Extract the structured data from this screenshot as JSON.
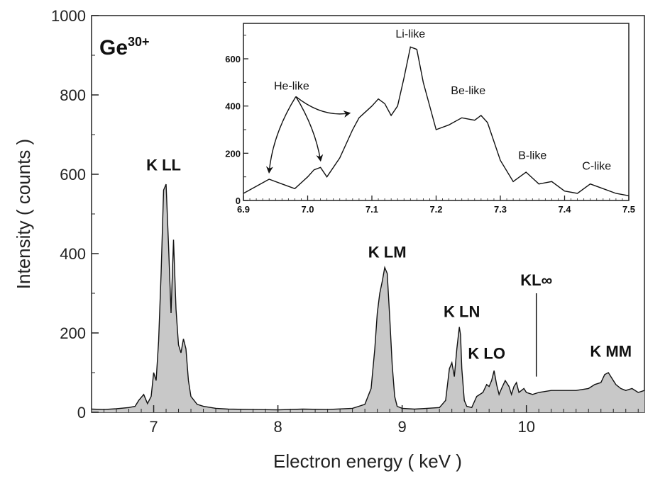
{
  "chart_data": [
    {
      "type": "area",
      "xlabel": "Electron energy  ( keV )",
      "ylabel": "Intensity  ( counts )",
      "xlim": [
        6.5,
        10.95
      ],
      "ylim": [
        0,
        1000
      ],
      "xticks": [
        7,
        8,
        9,
        10
      ],
      "yticks": [
        0,
        200,
        400,
        600,
        800,
        1000
      ],
      "ion": {
        "symbol": "Ge",
        "charge": "30+"
      },
      "x": [
        6.5,
        6.6,
        6.7,
        6.8,
        6.85,
        6.88,
        6.92,
        6.95,
        6.98,
        7.0,
        7.02,
        7.04,
        7.06,
        7.08,
        7.1,
        7.12,
        7.14,
        7.16,
        7.18,
        7.2,
        7.22,
        7.24,
        7.26,
        7.28,
        7.3,
        7.35,
        7.4,
        7.5,
        7.6,
        7.8,
        8.0,
        8.2,
        8.4,
        8.6,
        8.7,
        8.75,
        8.78,
        8.8,
        8.82,
        8.84,
        8.86,
        8.88,
        8.9,
        8.92,
        8.94,
        8.96,
        9.0,
        9.1,
        9.2,
        9.3,
        9.35,
        9.38,
        9.4,
        9.42,
        9.44,
        9.46,
        9.47,
        9.48,
        9.5,
        9.52,
        9.56,
        9.6,
        9.65,
        9.68,
        9.7,
        9.72,
        9.74,
        9.76,
        9.78,
        9.8,
        9.83,
        9.86,
        9.88,
        9.9,
        9.92,
        9.94,
        9.96,
        9.98,
        10.0,
        10.05,
        10.1,
        10.2,
        10.3,
        10.4,
        10.5,
        10.55,
        10.6,
        10.63,
        10.66,
        10.68,
        10.72,
        10.76,
        10.8,
        10.85,
        10.9,
        10.95
      ],
      "y": [
        8,
        7,
        9,
        12,
        15,
        30,
        45,
        22,
        40,
        100,
        80,
        180,
        350,
        560,
        575,
        420,
        250,
        435,
        260,
        170,
        150,
        185,
        160,
        80,
        40,
        20,
        15,
        10,
        8,
        7,
        6,
        8,
        7,
        10,
        20,
        60,
        160,
        250,
        300,
        330,
        365,
        350,
        240,
        120,
        40,
        15,
        10,
        8,
        10,
        12,
        30,
        110,
        125,
        90,
        160,
        215,
        195,
        110,
        30,
        15,
        12,
        40,
        50,
        70,
        65,
        80,
        105,
        70,
        45,
        60,
        80,
        65,
        45,
        65,
        75,
        50,
        55,
        60,
        50,
        45,
        50,
        55,
        55,
        55,
        60,
        70,
        75,
        95,
        100,
        90,
        70,
        60,
        55,
        60,
        50,
        55
      ],
      "annotations": [
        {
          "text": "K LL",
          "x": 7.08,
          "y": 610
        },
        {
          "text": "K LM",
          "x": 8.88,
          "y": 390
        },
        {
          "text": "K LN",
          "x": 9.48,
          "y": 240
        },
        {
          "text": "K LO",
          "x": 9.68,
          "y": 135
        },
        {
          "text": "KL∞",
          "x": 10.08,
          "y": 320
        },
        {
          "text": "K MM",
          "x": 10.68,
          "y": 140
        }
      ],
      "kl_inf_marker": {
        "x": 10.08,
        "y_from": 90,
        "y_to": 300
      },
      "grid": false
    },
    {
      "type": "line",
      "xlim": [
        6.9,
        7.5
      ],
      "ylim": [
        0,
        750
      ],
      "xticks": [
        6.9,
        7.0,
        7.1,
        7.2,
        7.3,
        7.4,
        7.5
      ],
      "yticks": [
        0,
        200,
        400,
        600
      ],
      "x": [
        6.9,
        6.92,
        6.94,
        6.96,
        6.98,
        7.0,
        7.01,
        7.02,
        7.03,
        7.05,
        7.07,
        7.08,
        7.1,
        7.11,
        7.12,
        7.13,
        7.14,
        7.15,
        7.16,
        7.17,
        7.18,
        7.2,
        7.22,
        7.24,
        7.26,
        7.27,
        7.28,
        7.3,
        7.32,
        7.34,
        7.36,
        7.38,
        7.4,
        7.42,
        7.44,
        7.46,
        7.48,
        7.5
      ],
      "y": [
        30,
        60,
        90,
        70,
        50,
        100,
        130,
        140,
        100,
        180,
        300,
        350,
        400,
        430,
        410,
        360,
        400,
        520,
        650,
        640,
        500,
        300,
        320,
        350,
        340,
        360,
        330,
        170,
        80,
        120,
        70,
        80,
        40,
        30,
        70,
        50,
        30,
        20
      ],
      "annotations": [
        {
          "text": "Li-like",
          "x": 7.16,
          "y": 690
        },
        {
          "text": "Be-like",
          "x": 7.25,
          "y": 450
        },
        {
          "text": "B-like",
          "x": 7.35,
          "y": 175
        },
        {
          "text": "C-like",
          "x": 7.45,
          "y": 130
        },
        {
          "text": "He-like",
          "x": 6.975,
          "y": 470
        }
      ],
      "arrows": [
        {
          "to_x": 6.94,
          "to_y": 120
        },
        {
          "to_x": 7.02,
          "to_y": 170
        },
        {
          "to_x": 7.065,
          "to_y": 370
        }
      ],
      "grid": false
    }
  ]
}
